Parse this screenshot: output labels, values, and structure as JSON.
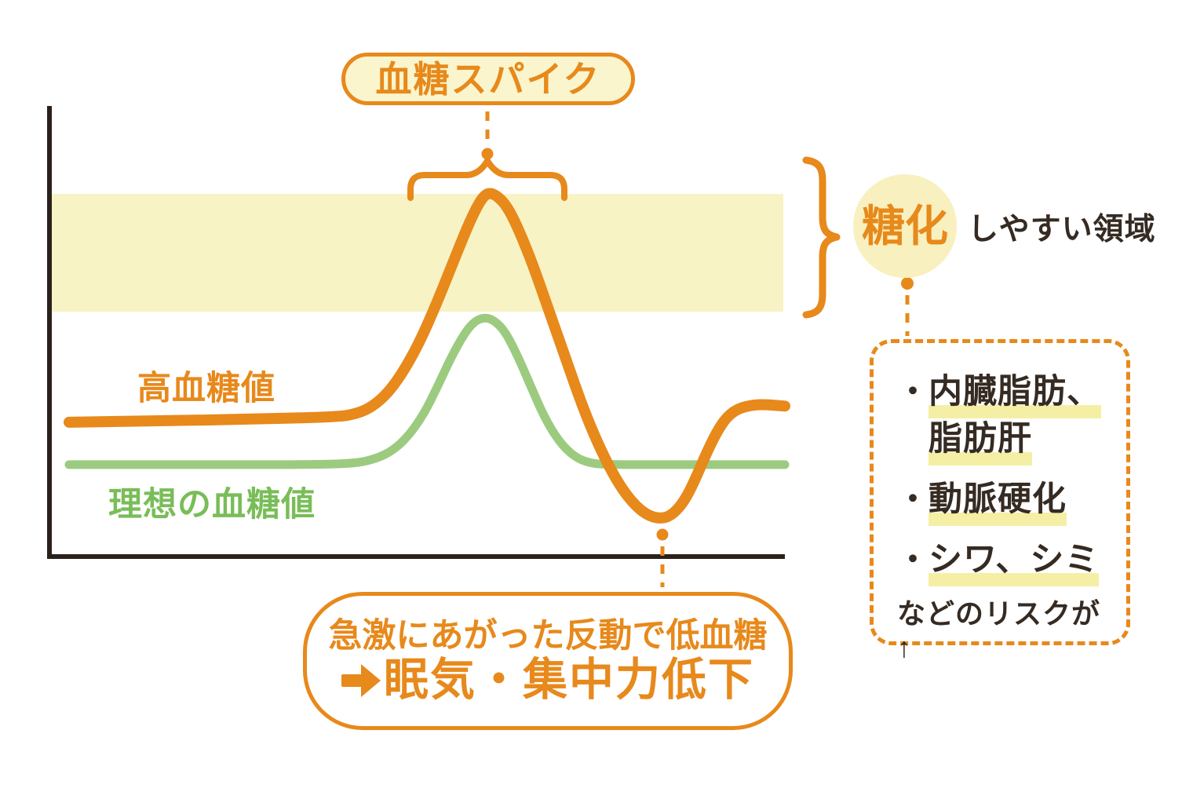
{
  "title_bubble": {
    "label": "血糖スパイク"
  },
  "series_labels": {
    "high": "高血糖値",
    "ideal": "理想の血糖値"
  },
  "glycation": {
    "circle_label": "糖化",
    "suffix_label": "しやすい領域"
  },
  "risk_box": {
    "bullet": "・",
    "items": [
      {
        "lines": [
          "内臓脂肪、",
          "脂肪肝"
        ]
      },
      {
        "lines": [
          "動脈硬化"
        ]
      },
      {
        "lines": [
          "シワ、シミ"
        ]
      }
    ],
    "footer": "などのリスクが↑"
  },
  "bottom_bubble": {
    "line1": "急激にあがった反動で低血糖",
    "line2": "眠気・集中力低下",
    "arrow_icon": "right-arrow-icon"
  },
  "colors": {
    "orange": "#e7891b",
    "green_curve": "#9ccb80",
    "green_label": "#79bd58",
    "cream_band": "#f7f3c5",
    "cream_bubble": "#faf5cd",
    "cream_circle": "#f8f0be",
    "highlight": "#f5efa5",
    "dark_text": "#352b23",
    "axis": "#2b211b"
  },
  "chart_data": {
    "type": "line",
    "title": "血糖スパイク (blood sugar spike diagram)",
    "xlabel": "",
    "ylabel": "",
    "x_axis": {
      "range": [
        0,
        100
      ],
      "ticks": "none (unlabeled time axis)"
    },
    "y_axis": {
      "range": [
        0,
        100
      ],
      "ticks": "none (unlabeled blood-glucose axis)"
    },
    "grid": false,
    "legend": "inline curve labels",
    "series": [
      {
        "id": "high",
        "name": "高血糖値",
        "color": "#e7891b",
        "stroke_width": 14,
        "points": [
          [
            0,
            29.8
          ],
          [
            12.3,
            30.1
          ],
          [
            25.4,
            30.5
          ],
          [
            37.5,
            31.0
          ],
          [
            40.2,
            31.7
          ],
          [
            42.4,
            33.3
          ],
          [
            44.6,
            36.4
          ],
          [
            46.8,
            41.3
          ],
          [
            49.0,
            47.7
          ],
          [
            51.2,
            55.6
          ],
          [
            53.4,
            64.3
          ],
          [
            55.3,
            71.8
          ],
          [
            56.7,
            76.8
          ],
          [
            57.8,
            79.8
          ],
          [
            58.6,
            80.7
          ],
          [
            59.6,
            80.3
          ],
          [
            61.1,
            78.0
          ],
          [
            62.7,
            73.0
          ],
          [
            64.7,
            65.2
          ],
          [
            66.9,
            55.2
          ],
          [
            69.3,
            44.3
          ],
          [
            72.0,
            32.1
          ],
          [
            74.6,
            22.5
          ],
          [
            77.0,
            15.5
          ],
          [
            79.2,
            11.1
          ],
          [
            81.1,
            8.9
          ],
          [
            82.9,
            8.4
          ],
          [
            84.4,
            9.4
          ],
          [
            86.0,
            12.4
          ],
          [
            87.5,
            17.2
          ],
          [
            89.0,
            22.8
          ],
          [
            90.5,
            27.7
          ],
          [
            91.8,
            30.8
          ],
          [
            93.2,
            32.6
          ],
          [
            94.7,
            33.4
          ],
          [
            96.7,
            33.8
          ],
          [
            100,
            33.4
          ]
        ]
      },
      {
        "id": "ideal",
        "name": "理想の血糖値",
        "color": "#9ccb80",
        "stroke_width": 11,
        "points": [
          [
            0,
            20.4
          ],
          [
            17.8,
            20.4
          ],
          [
            34.2,
            20.4
          ],
          [
            40.2,
            20.7
          ],
          [
            43.0,
            21.8
          ],
          [
            45.2,
            23.5
          ],
          [
            47.4,
            26.7
          ],
          [
            49.6,
            31.7
          ],
          [
            51.5,
            37.8
          ],
          [
            53.4,
            44.3
          ],
          [
            55.3,
            49.7
          ],
          [
            56.7,
            52.3
          ],
          [
            58.1,
            53.1
          ],
          [
            59.4,
            52.4
          ],
          [
            60.9,
            50.0
          ],
          [
            62.5,
            45.1
          ],
          [
            64.4,
            38.2
          ],
          [
            66.3,
            31.2
          ],
          [
            68.4,
            25.6
          ],
          [
            70.6,
            22.1
          ],
          [
            72.8,
            20.7
          ],
          [
            75.3,
            20.4
          ],
          [
            83.6,
            20.4
          ],
          [
            100,
            20.4
          ]
        ]
      }
    ],
    "annotations": {
      "band": {
        "label": "糖化しやすい領域",
        "y_from": 54.4,
        "y_to": 80.5,
        "color": "#f7f3c5"
      },
      "peak_label": "血糖スパイク",
      "trough_label": "急激にあがった反動で低血糖 ➡眠気・集中力低下",
      "risk_list": [
        "内臓脂肪、脂肪肝",
        "動脈硬化",
        "シワ、シミ"
      ],
      "risk_footer": "などのリスクが↑"
    }
  }
}
